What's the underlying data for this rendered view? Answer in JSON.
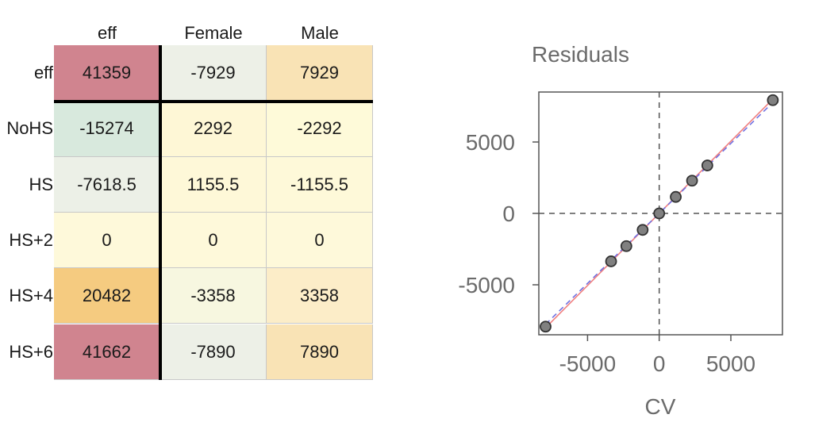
{
  "table": {
    "columns": [
      "eff",
      "Female",
      "Male"
    ],
    "rows": [
      {
        "label": "eff",
        "cells": [
          "41359",
          "-7929",
          "7929"
        ],
        "colors": [
          "#d0848f",
          "#edf0e7",
          "#f9e3b5"
        ]
      },
      {
        "label": "NoHS",
        "cells": [
          "-15274",
          "2292",
          "-2292"
        ],
        "colors": [
          "#d8e9dd",
          "#fef7d6",
          "#fefad9"
        ]
      },
      {
        "label": "HS",
        "cells": [
          "-7618.5",
          "1155.5",
          "-1155.5"
        ],
        "colors": [
          "#ecf0e7",
          "#fef8d8",
          "#fef9d9"
        ]
      },
      {
        "label": "HS+2",
        "cells": [
          "0",
          "0",
          "0"
        ],
        "colors": [
          "#fef9da",
          "#fef9da",
          "#fef9da"
        ]
      },
      {
        "label": "HS+4",
        "cells": [
          "20482",
          "-3358",
          "3358"
        ],
        "colors": [
          "#f5cb80",
          "#f7f7e0",
          "#fcedc8"
        ]
      },
      {
        "label": "HS+6",
        "cells": [
          "41662",
          "-7890",
          "7890"
        ],
        "colors": [
          "#d0848f",
          "#edf0e7",
          "#f9e3b5"
        ]
      }
    ]
  },
  "chart_data": {
    "type": "scatter",
    "title": "Residuals",
    "xlabel": "CV",
    "ylabel": "",
    "xlim": [
      -8400,
      8600
    ],
    "ylim": [
      -8500,
      8500
    ],
    "xticks": [
      "-5000",
      "0",
      "5000"
    ],
    "yticks": [
      "5000",
      "0",
      "-5000"
    ],
    "xtick_values": [
      -5000,
      0,
      5000
    ],
    "ytick_values": [
      5000,
      0,
      -5000
    ],
    "points": [
      {
        "x": -7929,
        "y": -7929
      },
      {
        "x": -3358,
        "y": -3358
      },
      {
        "x": -2292,
        "y": -2292
      },
      {
        "x": -1155.5,
        "y": -1155.5
      },
      {
        "x": 0,
        "y": 0
      },
      {
        "x": 1155.5,
        "y": 1155.5
      },
      {
        "x": 2292,
        "y": 2292
      },
      {
        "x": 3358,
        "y": 3358
      },
      {
        "x": 7929,
        "y": 7929
      }
    ],
    "reference_lines": [
      "x = 0 (dashed)",
      "y = 0 (dashed)"
    ],
    "fit_lines": [
      {
        "kind": "identity",
        "color": "#f08080",
        "style": "solid"
      },
      {
        "kind": "fit",
        "color": "#7070e0",
        "style": "dashed"
      }
    ],
    "point_fill": "#808080",
    "grid": false
  }
}
